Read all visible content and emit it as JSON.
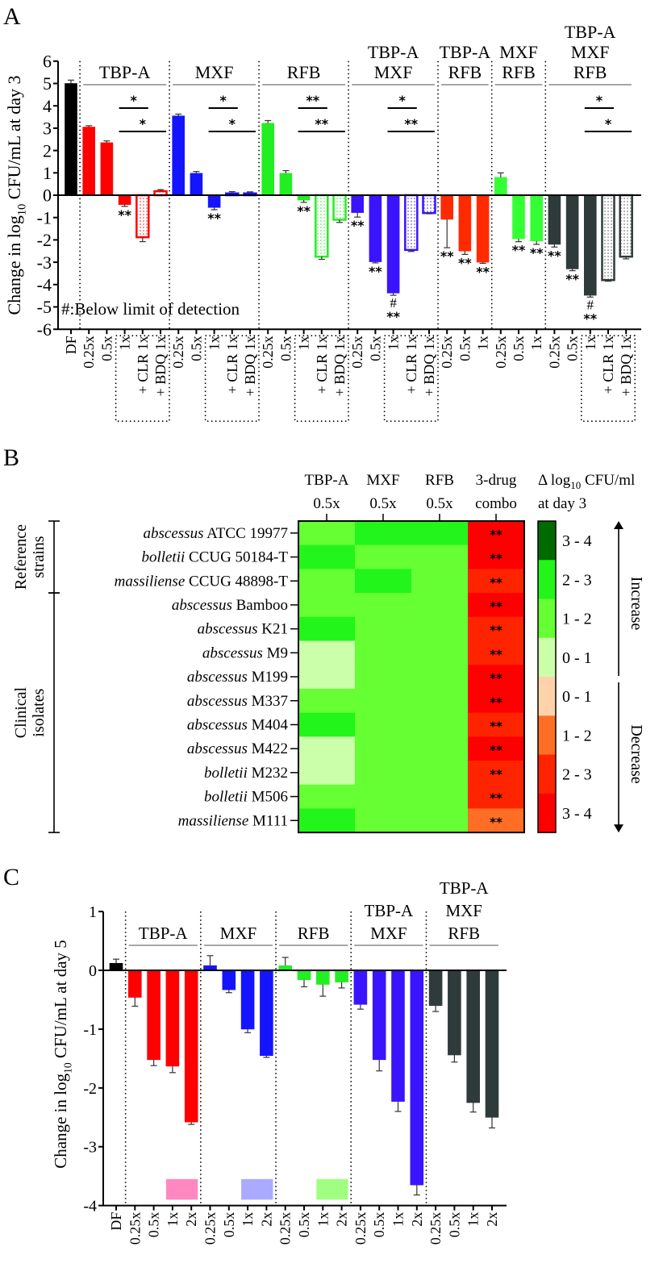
{
  "panel_labels": {
    "a": "A",
    "b": "B",
    "c": "C"
  },
  "chart_data": [
    {
      "type": "bar",
      "panel": "A",
      "ylabel": {
        "pre": "Change in log",
        "sub": "10",
        "post": " CFU/mL at day 3"
      },
      "ylim": [
        -6,
        6
      ],
      "yticks": [
        "6",
        "5",
        "4",
        "3",
        "2",
        "1",
        "0",
        "-1",
        "-2",
        "-3",
        "-4",
        "-5",
        "-6"
      ],
      "note": "#:Below limit of detection",
      "lod_symbol": "#",
      "control": {
        "label": "DF",
        "value": 5.0,
        "err": 0.15,
        "color": "#000000"
      },
      "groups": [
        {
          "title": [
            "TBP-A"
          ],
          "color": "#ff0000",
          "comparisons": [
            "*",
            "*"
          ],
          "bars": [
            {
              "label": "0.25x",
              "value": 3.05,
              "err": 0.06
            },
            {
              "label": "0.5x",
              "value": 2.35,
              "err": 0.08
            },
            {
              "label": "1x",
              "value": -0.42,
              "err": 0.08,
              "sig": "**"
            },
            {
              "label": "+ CLR 1x",
              "value": -1.88,
              "err": 0.2,
              "hatched": true
            },
            {
              "label": "+ BDQ 1x",
              "value": 0.18,
              "err": 0.07,
              "hatched": true
            }
          ]
        },
        {
          "title": [
            "MXF"
          ],
          "color": "#1414ff",
          "comparisons": [
            "*",
            "*"
          ],
          "bars": [
            {
              "label": "0.25x",
              "value": 3.55,
              "err": 0.08
            },
            {
              "label": "0.5x",
              "value": 0.98,
              "err": 0.08
            },
            {
              "label": "1x",
              "value": -0.55,
              "err": 0.1,
              "sig": "**"
            },
            {
              "label": "+ CLR 1x",
              "value": 0.08,
              "err": 0.08,
              "hatched": true
            },
            {
              "label": "+ BDQ 1x",
              "value": 0.08,
              "err": 0.07,
              "hatched": true
            }
          ]
        },
        {
          "title": [
            "RFB"
          ],
          "color": "#22ee22",
          "comparisons": [
            "**",
            "**"
          ],
          "bars": [
            {
              "label": "0.25x",
              "value": 3.22,
              "err": 0.12
            },
            {
              "label": "0.5x",
              "value": 0.98,
              "err": 0.12
            },
            {
              "label": "1x",
              "value": -0.22,
              "err": 0.1,
              "sig": "**"
            },
            {
              "label": "+ CLR 1x",
              "value": -2.75,
              "err": 0.12,
              "hatched": true
            },
            {
              "label": "+ BDQ 1x",
              "value": -1.1,
              "err": 0.12,
              "hatched": true
            }
          ]
        },
        {
          "title": [
            "TBP-A",
            "MXF"
          ],
          "color": "#3a14ff",
          "comparisons": [
            "*",
            "**"
          ],
          "bars": [
            {
              "label": "0.25x",
              "value": -0.78,
              "err": 0.2,
              "sig": "**"
            },
            {
              "label": "0.5x",
              "value": -2.98,
              "err": 0.05,
              "sig": "**"
            },
            {
              "label": "1x",
              "value": -4.38,
              "err": 0.1,
              "sig": "**",
              "lod": true
            },
            {
              "label": "+ CLR 1x",
              "value": -2.45,
              "err": 0.07,
              "hatched": true
            },
            {
              "label": "+ BDQ 1x",
              "value": -0.8,
              "err": 0.03,
              "hatched": true
            }
          ]
        },
        {
          "title": [
            "TBP-A",
            "RFB"
          ],
          "color": "#ff2a00",
          "comparisons": [],
          "bars": [
            {
              "label": "0.25x",
              "value": -1.08,
              "err": 1.27,
              "sig": "**"
            },
            {
              "label": "0.5x",
              "value": -2.5,
              "err": 0.15,
              "sig": "**"
            },
            {
              "label": "1x",
              "value": -3.0,
              "err": 0.05,
              "sig": "**"
            }
          ]
        },
        {
          "title": [
            "MXF",
            "RFB"
          ],
          "color": "#33ff33",
          "comparisons": [],
          "bars": [
            {
              "label": "0.25x",
              "value": 0.8,
              "err": 0.2
            },
            {
              "label": "0.5x",
              "value": -1.95,
              "err": 0.13,
              "sig": "**"
            },
            {
              "label": "1x",
              "value": -2.05,
              "err": 0.15,
              "sig": "**"
            }
          ]
        },
        {
          "title": [
            "TBP-A",
            "MXF",
            "RFB"
          ],
          "color": "#2f3b3b",
          "comparisons": [
            "*",
            "*"
          ],
          "bars": [
            {
              "label": "0.25x",
              "value": -2.2,
              "err": 0.12,
              "sig": "**"
            },
            {
              "label": "0.5x",
              "value": -3.3,
              "err": 0.08,
              "sig": "**"
            },
            {
              "label": "1x",
              "value": -4.48,
              "err": 0.08,
              "sig": "**",
              "lod": true
            },
            {
              "label": "+ CLR 1x",
              "value": -3.8,
              "err": 0.05,
              "hatched": true
            },
            {
              "label": "+ BDQ 1x",
              "value": -2.75,
              "err": 0.1,
              "hatched": true
            }
          ]
        }
      ]
    },
    {
      "type": "heatmap",
      "panel": "B",
      "columns": [
        {
          "l1": "TBP-A",
          "l2": "0.5x"
        },
        {
          "l1": "MXF",
          "l2": "0.5x"
        },
        {
          "l1": "RFB",
          "l2": "0.5x"
        },
        {
          "l1": "3-drug",
          "l2": "combo"
        }
      ],
      "row_groups": [
        {
          "l1": "Reference",
          "l2": "strains",
          "rows": 3
        },
        {
          "l1": "Clinical",
          "l2": "isolates",
          "rows": 10
        }
      ],
      "rows": [
        {
          "species": "abscessus",
          "strain": " ATCC 19977",
          "cells": [
            "inc 1-2",
            "inc 2-3",
            "inc 2-3",
            "dec 3-4"
          ],
          "sig": "**"
        },
        {
          "species": "bolletii",
          "strain": " CCUG 50184-T",
          "cells": [
            "inc 2-3",
            "inc 1-2",
            "inc 1-2",
            "dec 3-4"
          ],
          "sig": "**"
        },
        {
          "species": "massiliense",
          "strain": " CCUG 48898-T",
          "cells": [
            "inc 1-2",
            "inc 2-3",
            "inc 1-2",
            "dec 2-3"
          ],
          "sig": "**"
        },
        {
          "species": "abscessus",
          "strain": " Bamboo",
          "cells": [
            "inc 1-2",
            "inc 1-2",
            "inc 1-2",
            "dec 3-4"
          ],
          "sig": "**"
        },
        {
          "species": "abscessus",
          "strain": " K21",
          "cells": [
            "inc 2-3",
            "inc 1-2",
            "inc 1-2",
            "dec 2-3"
          ],
          "sig": "**"
        },
        {
          "species": "abscessus",
          "strain": " M9",
          "cells": [
            "inc 0-1",
            "inc 1-2",
            "inc 1-2",
            "dec 2-3"
          ],
          "sig": "**"
        },
        {
          "species": "abscessus",
          "strain": " M199",
          "cells": [
            "inc 0-1",
            "inc 1-2",
            "inc 1-2",
            "dec 3-4"
          ],
          "sig": "**"
        },
        {
          "species": "abscessus",
          "strain": " M337",
          "cells": [
            "inc 1-2",
            "inc 1-2",
            "inc 1-2",
            "dec 3-4"
          ],
          "sig": "**"
        },
        {
          "species": "abscessus",
          "strain": " M404",
          "cells": [
            "inc 2-3",
            "inc 1-2",
            "inc 1-2",
            "dec 2-3"
          ],
          "sig": "**"
        },
        {
          "species": "abscessus",
          "strain": " M422",
          "cells": [
            "inc 0-1",
            "inc 1-2",
            "inc 1-2",
            "dec 3-4"
          ],
          "sig": "**"
        },
        {
          "species": "bolletii",
          "strain": " M232",
          "cells": [
            "inc 0-1",
            "inc 1-2",
            "inc 1-2",
            "dec 2-3"
          ],
          "sig": "**"
        },
        {
          "species": "bolletii",
          "strain": " M506",
          "cells": [
            "inc 1-2",
            "inc 1-2",
            "inc 1-2",
            "dec 2-3"
          ],
          "sig": "**"
        },
        {
          "species": "massiliense",
          "strain": " M111",
          "cells": [
            "inc 2-3",
            "inc 1-2",
            "inc 1-2",
            "dec 1-2"
          ],
          "sig": "**"
        }
      ],
      "legend": {
        "title": {
          "pre": "Δ log",
          "sub": "10",
          "post": " CFU/ml",
          "line2": "at day 3"
        },
        "increase_label": "Increase",
        "decrease_label": "Decrease",
        "bins": [
          {
            "key": "inc 3-4",
            "label": "3 - 4",
            "color": "#006a00"
          },
          {
            "key": "inc 2-3",
            "label": "2 - 3",
            "color": "#22f51a"
          },
          {
            "key": "inc 1-2",
            "label": "1 - 2",
            "color": "#66ff33"
          },
          {
            "key": "inc 0-1",
            "label": "0 - 1",
            "color": "#ccffaa"
          },
          {
            "key": "dec 0-1",
            "label": "0 - 1",
            "color": "#ffd2aa"
          },
          {
            "key": "dec 1-2",
            "label": "1 - 2",
            "color": "#ff6e24"
          },
          {
            "key": "dec 2-3",
            "label": "2 - 3",
            "color": "#ff2400"
          },
          {
            "key": "dec 3-4",
            "label": "3 - 4",
            "color": "#ff0000"
          }
        ]
      }
    },
    {
      "type": "bar",
      "panel": "C",
      "ylabel": {
        "pre": "Change in log",
        "sub": "10",
        "post": " CFU/mL at day 5"
      },
      "ylim": [
        -4,
        1
      ],
      "yticks": [
        "1",
        "0",
        "-1",
        "-2",
        "-3",
        "-4"
      ],
      "control": {
        "label": "DF",
        "value": 0.12,
        "err": 0.07,
        "color": "#000000"
      },
      "groups": [
        {
          "title": [
            "TBP-A"
          ],
          "color": "#ff0000",
          "swatch": "#ff88c0",
          "bars": [
            {
              "label": "0.25x",
              "value": -0.46,
              "err": 0.15
            },
            {
              "label": "0.5x",
              "value": -1.52,
              "err": 0.1
            },
            {
              "label": "1x",
              "value": -1.63,
              "err": 0.11
            },
            {
              "label": "2x",
              "value": -2.58,
              "err": 0.04
            }
          ]
        },
        {
          "title": [
            "MXF"
          ],
          "color": "#1414ff",
          "swatch": "#aaaaff",
          "bars": [
            {
              "label": "0.25x",
              "value": 0.08,
              "err": 0.17
            },
            {
              "label": "0.5x",
              "value": -0.33,
              "err": 0.05
            },
            {
              "label": "1x",
              "value": -1.0,
              "err": 0.06
            },
            {
              "label": "2x",
              "value": -1.45,
              "err": 0.03
            }
          ]
        },
        {
          "title": [
            "RFB"
          ],
          "color": "#22ee22",
          "swatch": "#a0ff80",
          "bars": [
            {
              "label": "0.25x",
              "value": 0.08,
              "err": 0.14
            },
            {
              "label": "0.5x",
              "value": -0.16,
              "err": 0.12
            },
            {
              "label": "1x",
              "value": -0.24,
              "err": 0.2
            },
            {
              "label": "2x",
              "value": -0.2,
              "err": 0.1
            }
          ]
        },
        {
          "title": [
            "TBP-A",
            "MXF"
          ],
          "color": "#3a14ff",
          "bars": [
            {
              "label": "0.25x",
              "value": -0.58,
              "err": 0.08
            },
            {
              "label": "0.5x",
              "value": -1.52,
              "err": 0.19
            },
            {
              "label": "1x",
              "value": -2.23,
              "err": 0.17
            },
            {
              "label": "2x",
              "value": -3.65,
              "err": 0.17
            }
          ]
        },
        {
          "title": [
            "TBP-A",
            "MXF",
            "RFB"
          ],
          "color": "#2f3b3b",
          "bars": [
            {
              "label": "0.25x",
              "value": -0.6,
              "err": 0.1
            },
            {
              "label": "0.5x",
              "value": -1.44,
              "err": 0.12
            },
            {
              "label": "1x",
              "value": -2.25,
              "err": 0.16
            },
            {
              "label": "2x",
              "value": -2.5,
              "err": 0.18
            }
          ]
        }
      ]
    }
  ]
}
